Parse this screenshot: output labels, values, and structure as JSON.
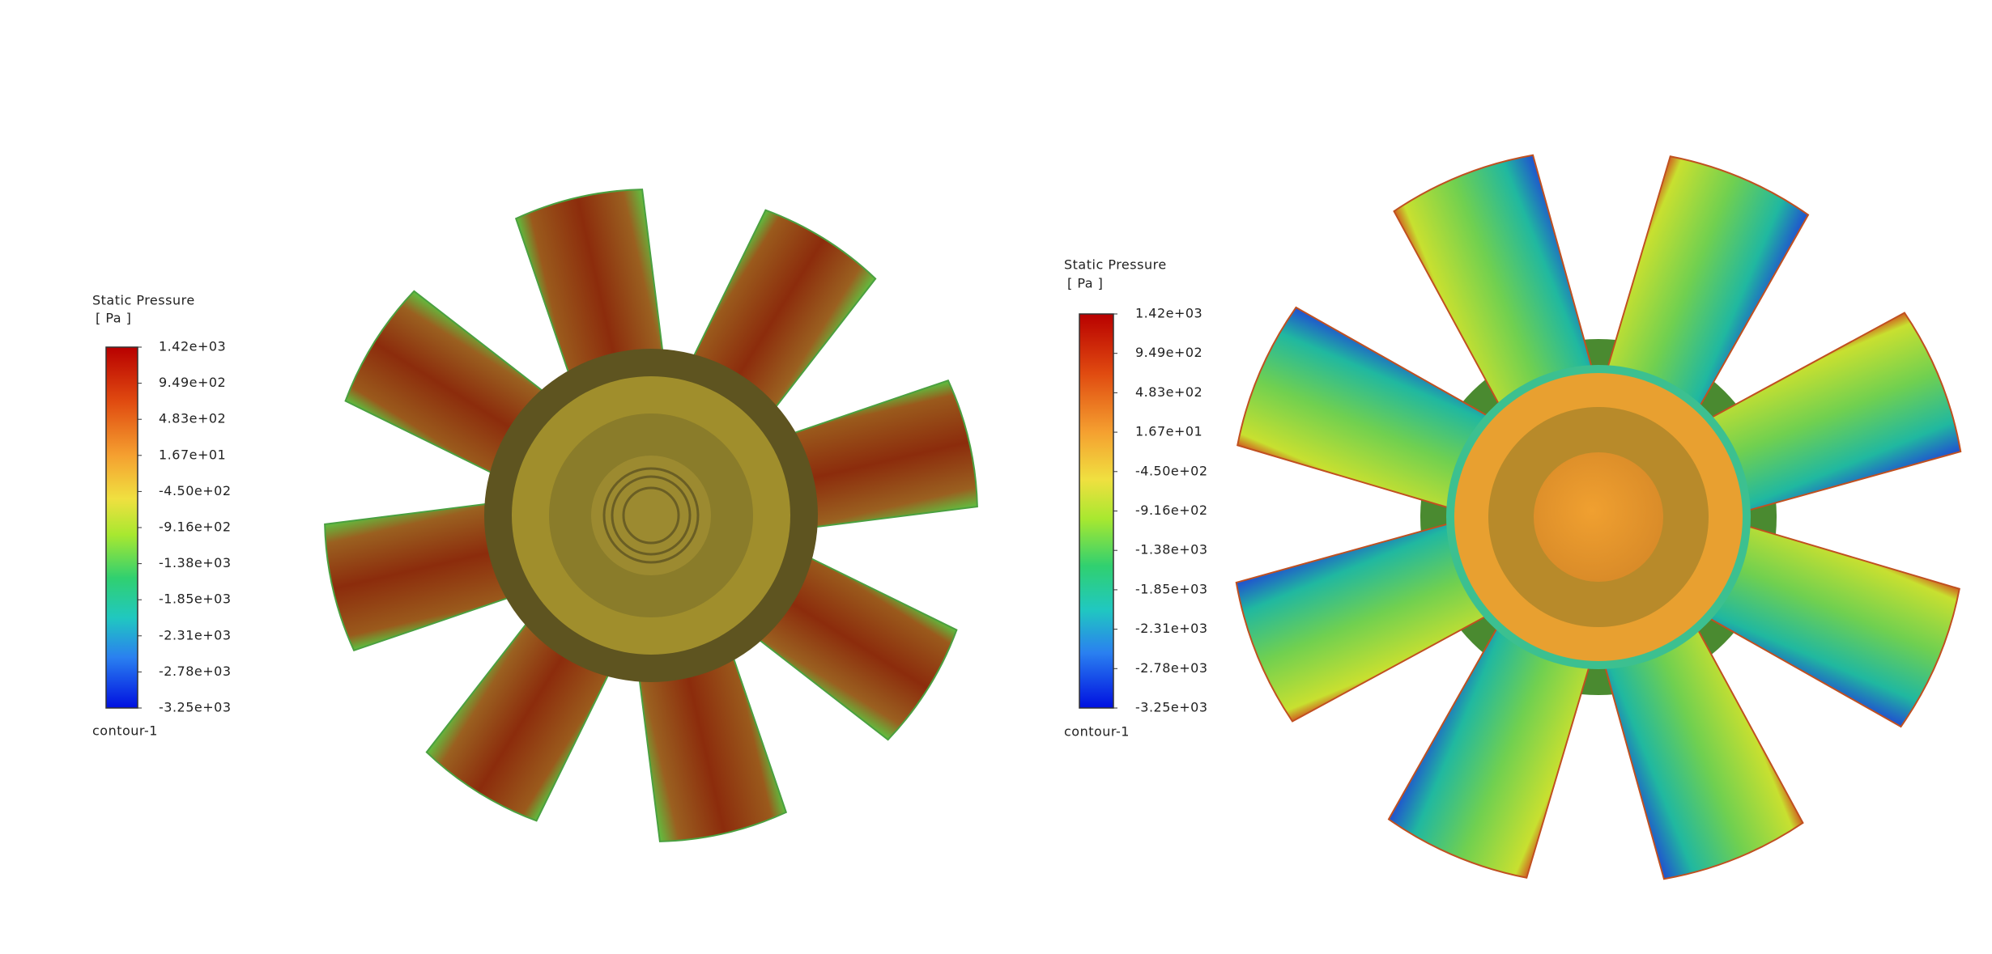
{
  "legends": [
    {
      "title": "Static Pressure",
      "unit": "[ Pa ]",
      "labels": [
        "1.42e+03",
        "9.49e+02",
        "4.83e+02",
        "1.67e+01",
        "-4.50e+02",
        "-9.16e+02",
        "-1.38e+03",
        "-1.85e+03",
        "-2.31e+03",
        "-2.78e+03",
        "-3.25e+03"
      ],
      "footer": "contour-1"
    },
    {
      "title": "Static Pressure",
      "unit": "[ Pa ]",
      "labels": [
        "1.42e+03",
        "9.49e+02",
        "4.83e+02",
        "1.67e+01",
        "-4.50e+02",
        "-9.16e+02",
        "-1.38e+03",
        "-1.85e+03",
        "-2.31e+03",
        "-2.78e+03",
        "-3.25e+03"
      ],
      "footer": "contour-1"
    }
  ]
}
